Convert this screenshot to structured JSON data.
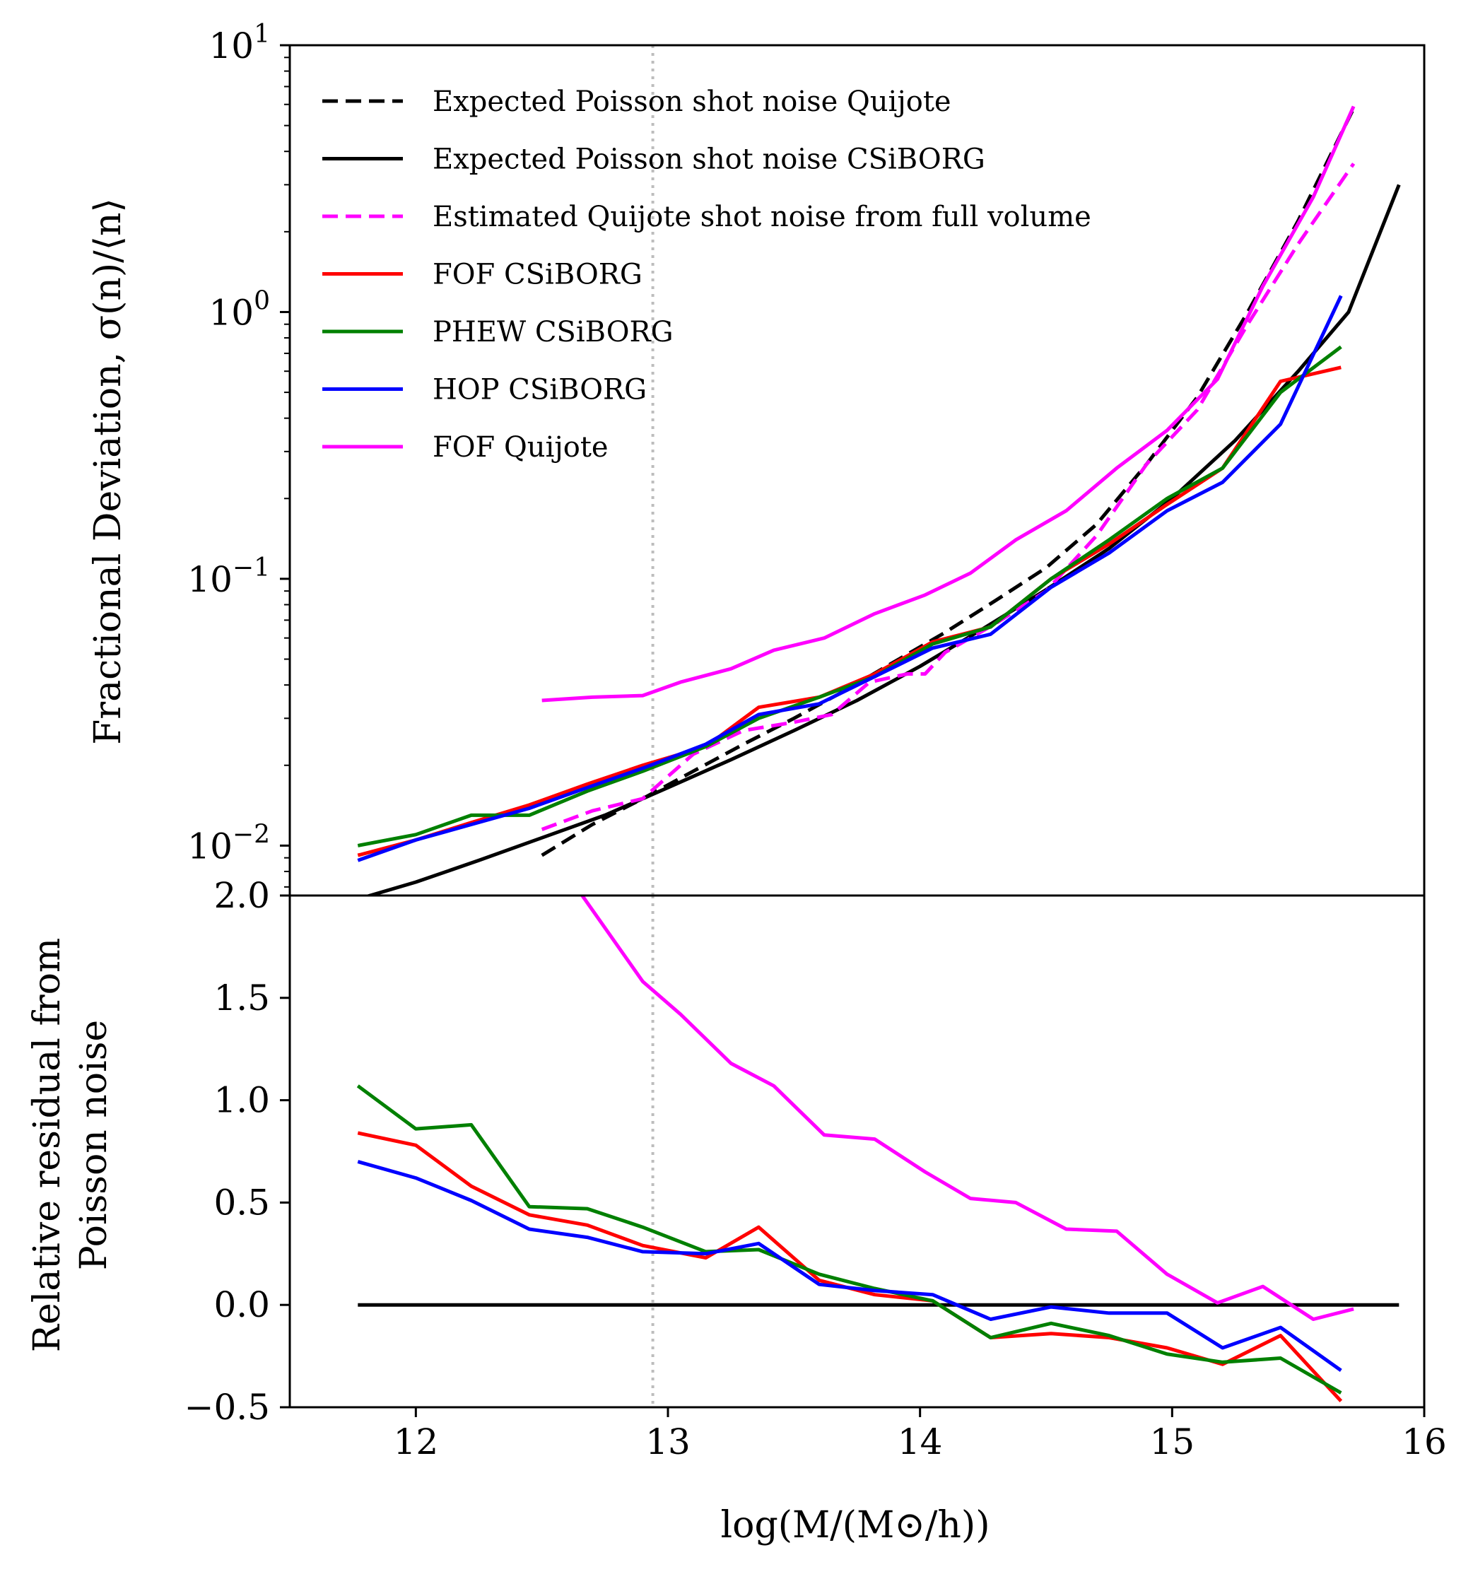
{
  "chart_data": {
    "type": "line",
    "xlabel": "log(M/(M⊙/h))",
    "xlim": [
      11.5,
      16
    ],
    "xticks": [
      "12",
      "13",
      "14",
      "15",
      "16"
    ],
    "vline_x": 12.94,
    "top": {
      "ylabel": "Fractional Deviation, σ(n)/⟨n⟩",
      "yscale": "log",
      "ylim": [
        0.0065,
        10
      ],
      "ytick_labels": [
        {
          "value": 10,
          "base": "10",
          "exp": "1"
        },
        {
          "value": 1,
          "base": "10",
          "exp": "0"
        },
        {
          "value": 0.1,
          "base": "10",
          "exp": "−1"
        },
        {
          "value": 0.01,
          "base": "10",
          "exp": "−2"
        }
      ],
      "series": [
        {
          "name": "Expected Poisson shot noise Quijote",
          "color": "#000000",
          "dash": true,
          "x": [
            12.5,
            12.7,
            12.9,
            13.1,
            13.3,
            13.5,
            13.7,
            13.9,
            14.1,
            14.3,
            14.5,
            14.7,
            14.9,
            15.1,
            15.3,
            15.5,
            15.72
          ],
          "y": [
            0.0092,
            0.012,
            0.015,
            0.019,
            0.024,
            0.03,
            0.038,
            0.049,
            0.063,
            0.083,
            0.11,
            0.16,
            0.27,
            0.48,
            1.0,
            2.2,
            5.8
          ]
        },
        {
          "name": "Expected Poisson shot noise CSiBORG",
          "color": "#000000",
          "dash": false,
          "x": [
            11.77,
            12.0,
            12.25,
            12.5,
            12.75,
            13.0,
            13.25,
            13.5,
            13.75,
            14.0,
            14.25,
            14.5,
            14.75,
            15.0,
            15.25,
            15.5,
            15.7,
            15.9
          ],
          "y": [
            0.0063,
            0.0073,
            0.0088,
            0.0107,
            0.013,
            0.0165,
            0.021,
            0.027,
            0.035,
            0.047,
            0.065,
            0.091,
            0.13,
            0.2,
            0.33,
            0.6,
            1.0,
            3.0
          ]
        },
        {
          "name": "Estimated Quijote shot noise from full volume",
          "color": "#ff00ff",
          "dash": true,
          "x": [
            12.5,
            12.7,
            12.9,
            13.1,
            13.3,
            13.5,
            13.65,
            13.8,
            13.95,
            14.02,
            14.1,
            14.3,
            14.5,
            14.7,
            14.9,
            15.1,
            15.3,
            15.5,
            15.72
          ],
          "y": [
            0.0115,
            0.0135,
            0.015,
            0.022,
            0.027,
            0.029,
            0.031,
            0.041,
            0.044,
            0.044,
            0.053,
            0.068,
            0.09,
            0.145,
            0.27,
            0.43,
            0.9,
            1.8,
            3.6
          ]
        },
        {
          "name": "FOF CSiBORG",
          "color": "#ff0000",
          "dash": false,
          "x": [
            11.77,
            12.0,
            12.22,
            12.45,
            12.68,
            12.9,
            13.15,
            13.36,
            13.6,
            13.82,
            14.05,
            14.28,
            14.52,
            14.75,
            14.98,
            15.2,
            15.43,
            15.67
          ],
          "y": [
            0.0092,
            0.0105,
            0.0122,
            0.0142,
            0.017,
            0.02,
            0.0235,
            0.033,
            0.036,
            0.044,
            0.058,
            0.066,
            0.1,
            0.135,
            0.19,
            0.26,
            0.55,
            0.62
          ]
        },
        {
          "name": "PHEW CSiBORG",
          "color": "#008000",
          "dash": false,
          "x": [
            11.77,
            12.0,
            12.22,
            12.45,
            12.68,
            12.9,
            13.15,
            13.36,
            13.6,
            13.82,
            14.05,
            14.28,
            14.52,
            14.75,
            14.98,
            15.2,
            15.43,
            15.67
          ],
          "y": [
            0.01,
            0.011,
            0.013,
            0.013,
            0.016,
            0.019,
            0.0235,
            0.03,
            0.036,
            0.043,
            0.057,
            0.066,
            0.1,
            0.14,
            0.2,
            0.26,
            0.5,
            0.74
          ]
        },
        {
          "name": "HOP CSiBORG",
          "color": "#0000ff",
          "dash": false,
          "x": [
            11.77,
            12.0,
            12.22,
            12.45,
            12.68,
            12.9,
            13.15,
            13.36,
            13.6,
            13.82,
            14.05,
            14.28,
            14.52,
            14.75,
            14.98,
            15.2,
            15.43,
            15.67
          ],
          "y": [
            0.0088,
            0.0105,
            0.012,
            0.0138,
            0.0165,
            0.0195,
            0.024,
            0.031,
            0.034,
            0.043,
            0.055,
            0.062,
            0.093,
            0.125,
            0.18,
            0.23,
            0.38,
            1.15
          ]
        },
        {
          "name": "FOF Quijote",
          "color": "#ff00ff",
          "dash": false,
          "x": [
            12.5,
            12.7,
            12.9,
            13.05,
            13.25,
            13.42,
            13.62,
            13.82,
            14.02,
            14.2,
            14.38,
            14.58,
            14.78,
            14.98,
            15.18,
            15.36,
            15.56,
            15.72
          ],
          "y": [
            0.035,
            0.036,
            0.0365,
            0.041,
            0.046,
            0.054,
            0.06,
            0.074,
            0.087,
            0.105,
            0.14,
            0.18,
            0.26,
            0.36,
            0.56,
            1.25,
            2.7,
            5.9
          ]
        }
      ]
    },
    "bottom": {
      "ylabel": [
        "Relative residual from",
        "Poisson noise"
      ],
      "ylim": [
        -0.5,
        2.0
      ],
      "yticks": [
        -0.5,
        0.0,
        0.5,
        1.0,
        1.5,
        2.0
      ],
      "ytick_labels": [
        "−0.5",
        "0.0",
        "0.5",
        "1.0",
        "1.5",
        "2.0"
      ],
      "series": [
        {
          "name": "zero",
          "color": "#000000",
          "x": [
            11.77,
            15.9
          ],
          "y": [
            0.0,
            0.0
          ]
        },
        {
          "name": "FOF CSiBORG",
          "color": "#ff0000",
          "x": [
            11.77,
            12.0,
            12.22,
            12.45,
            12.68,
            12.9,
            13.15,
            13.36,
            13.6,
            13.82,
            14.05,
            14.28,
            14.52,
            14.75,
            14.98,
            15.2,
            15.43,
            15.67
          ],
          "y": [
            0.84,
            0.78,
            0.58,
            0.44,
            0.39,
            0.29,
            0.23,
            0.38,
            0.12,
            0.05,
            0.02,
            -0.16,
            -0.14,
            -0.16,
            -0.21,
            -0.29,
            -0.15,
            -0.47
          ]
        },
        {
          "name": "PHEW CSiBORG",
          "color": "#008000",
          "x": [
            11.77,
            12.0,
            12.22,
            12.45,
            12.68,
            12.9,
            13.15,
            13.36,
            13.6,
            13.82,
            14.05,
            14.28,
            14.52,
            14.75,
            14.98,
            15.2,
            15.43,
            15.67
          ],
          "y": [
            1.07,
            0.86,
            0.88,
            0.48,
            0.47,
            0.38,
            0.26,
            0.27,
            0.15,
            0.08,
            0.02,
            -0.16,
            -0.09,
            -0.15,
            -0.24,
            -0.28,
            -0.26,
            -0.43
          ]
        },
        {
          "name": "HOP CSiBORG",
          "color": "#0000ff",
          "x": [
            11.77,
            12.0,
            12.22,
            12.45,
            12.68,
            12.9,
            13.15,
            13.36,
            13.6,
            13.82,
            14.05,
            14.28,
            14.52,
            14.75,
            14.98,
            15.2,
            15.43,
            15.67
          ],
          "y": [
            0.7,
            0.62,
            0.51,
            0.37,
            0.33,
            0.26,
            0.25,
            0.3,
            0.1,
            0.07,
            0.05,
            -0.07,
            -0.01,
            -0.04,
            -0.04,
            -0.21,
            -0.11,
            -0.32
          ]
        },
        {
          "name": "FOF Quijote",
          "color": "#ff00ff",
          "x": [
            12.66,
            12.9,
            13.05,
            13.25,
            13.42,
            13.62,
            13.82,
            14.02,
            14.2,
            14.38,
            14.58,
            14.78,
            14.98,
            15.18,
            15.36,
            15.56,
            15.72
          ],
          "y": [
            2.0,
            1.58,
            1.42,
            1.18,
            1.07,
            0.83,
            0.81,
            0.65,
            0.52,
            0.5,
            0.37,
            0.36,
            0.15,
            0.01,
            0.09,
            -0.07,
            -0.02
          ]
        }
      ]
    },
    "legend": [
      {
        "label": "Expected Poisson shot noise Quijote",
        "color": "#000000",
        "dash": true
      },
      {
        "label": "Expected Poisson shot noise CSiBORG",
        "color": "#000000",
        "dash": false
      },
      {
        "label": "Estimated Quijote shot noise from full volume",
        "color": "#ff00ff",
        "dash": true
      },
      {
        "label": "FOF CSiBORG",
        "color": "#ff0000",
        "dash": false
      },
      {
        "label": "PHEW CSiBORG",
        "color": "#008000",
        "dash": false
      },
      {
        "label": "HOP CSiBORG",
        "color": "#0000ff",
        "dash": false
      },
      {
        "label": "FOF Quijote",
        "color": "#ff00ff",
        "dash": false
      }
    ]
  }
}
